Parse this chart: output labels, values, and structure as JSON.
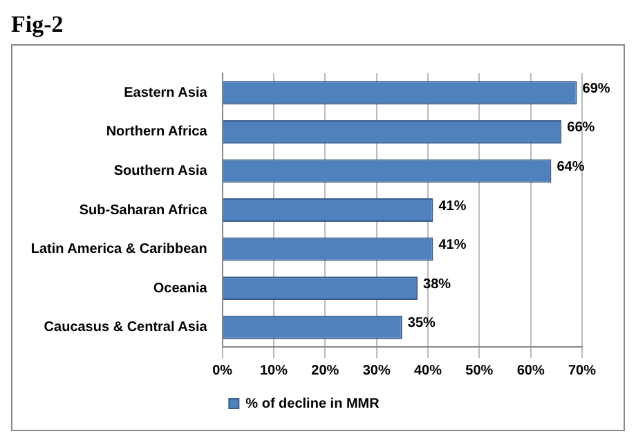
{
  "chart_data": {
    "type": "bar",
    "orientation": "horizontal",
    "title": "Fig-2",
    "categories": [
      "Eastern Asia",
      "Northern Africa",
      "Southern Asia",
      "Sub-Saharan Africa",
      "Latin America & Caribbean",
      "Oceania",
      "Caucasus & Central Asia"
    ],
    "series": [
      {
        "name": "% of decline in MMR",
        "color": "#4f81bd",
        "values": [
          69,
          66,
          64,
          41,
          41,
          38,
          35
        ],
        "value_labels": [
          "69%",
          "66%",
          "64%",
          "41%",
          "41%",
          "38%",
          "35%"
        ]
      }
    ],
    "xlim": [
      0,
      70
    ],
    "xticks": [
      {
        "value": 0,
        "label": "0%"
      },
      {
        "value": 10,
        "label": "10%"
      },
      {
        "value": 20,
        "label": "20%"
      },
      {
        "value": 30,
        "label": "30%"
      },
      {
        "value": 40,
        "label": "40%"
      },
      {
        "value": 50,
        "label": "50%"
      },
      {
        "value": 60,
        "label": "60%"
      },
      {
        "value": 70,
        "label": "70%"
      }
    ],
    "grid": "x",
    "legend": "bottom"
  }
}
